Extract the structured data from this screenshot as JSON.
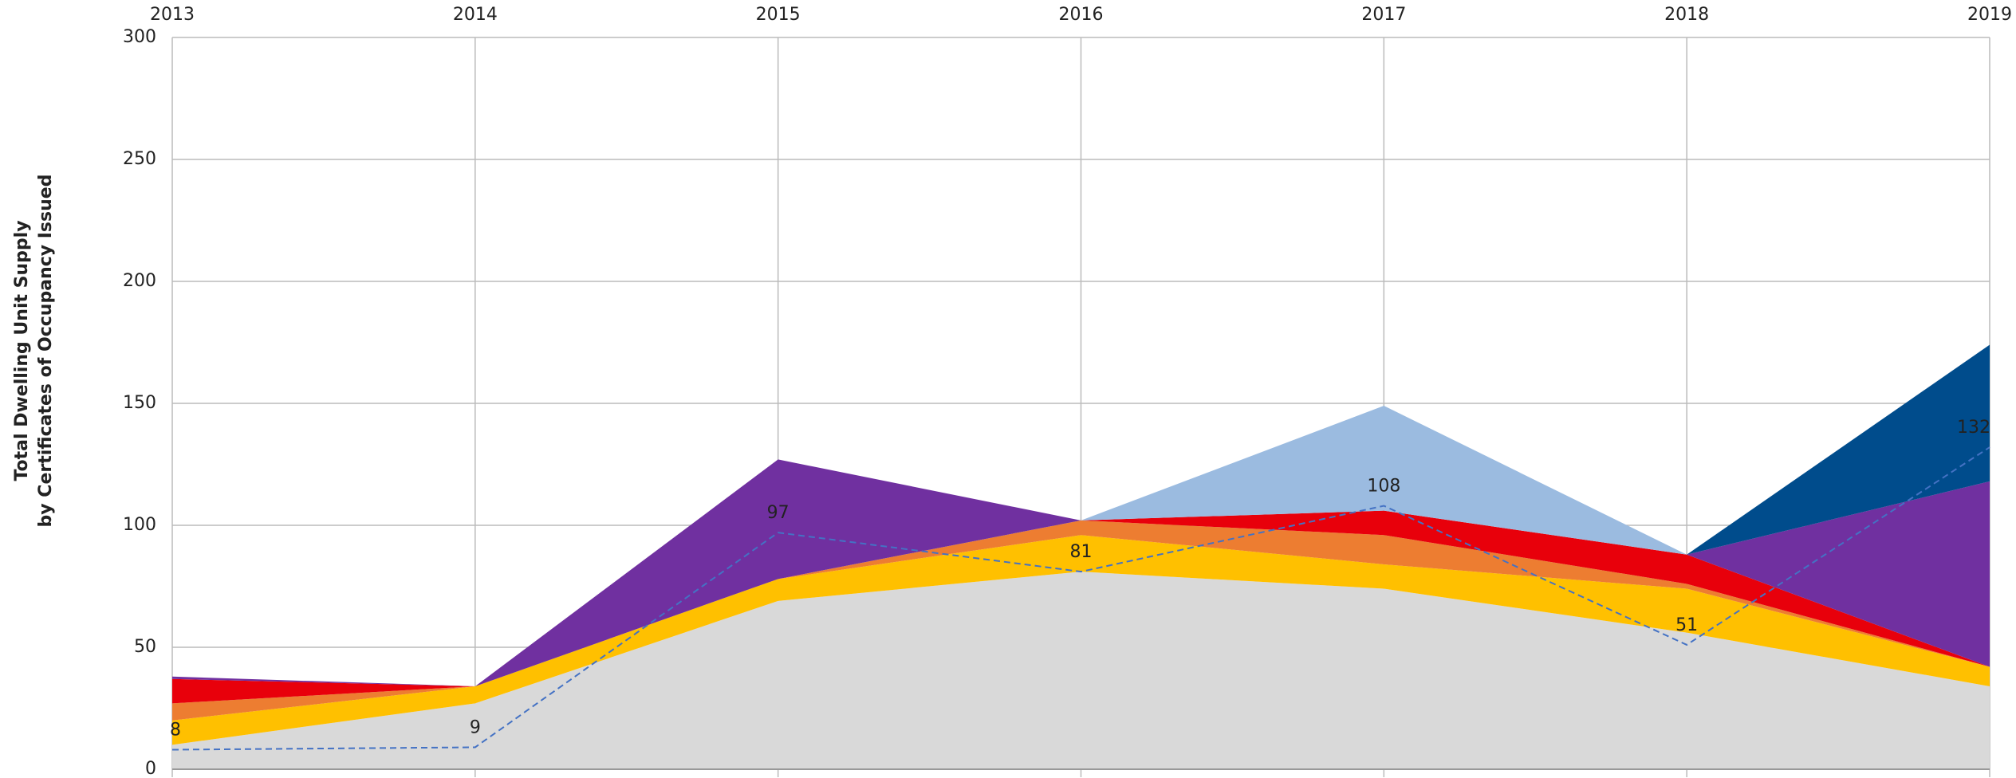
{
  "chart_data": {
    "type": "stacked_area",
    "ylabel": [
      "Total Dwelling Unit Supply",
      "by Certificates of Occupancy Issued"
    ],
    "categories": [
      "2013",
      "2014",
      "2015",
      "2016",
      "2017",
      "2018",
      "2019"
    ],
    "series": [
      {
        "color": "#d9d9d9",
        "values": [
          10,
          27,
          69,
          81,
          74,
          56,
          34
        ]
      },
      {
        "color": "#ffc000",
        "values": [
          10,
          7,
          9,
          15,
          10,
          18,
          8
        ]
      },
      {
        "color": "#ed7d31",
        "values": [
          7,
          0,
          0,
          6,
          12,
          2,
          0
        ]
      },
      {
        "color": "#e8000b",
        "values": [
          10,
          0,
          0,
          0,
          10,
          12,
          0
        ]
      },
      {
        "color": "#7030a0",
        "values": [
          1,
          0,
          49,
          0,
          0,
          0,
          76
        ]
      },
      {
        "color": "#9bbbe0",
        "values": [
          0,
          0,
          0,
          0,
          43,
          0,
          0
        ]
      },
      {
        "color": "#004c8c",
        "values": [
          0,
          0,
          0,
          0,
          0,
          0,
          56
        ]
      }
    ],
    "line": {
      "color": "#4472c4",
      "dashed": true,
      "values": [
        8,
        9,
        97,
        81,
        108,
        51,
        132
      ]
    },
    "ylim": [
      0,
      300
    ],
    "yticks": [
      0,
      50,
      100,
      150,
      200,
      250,
      300
    ],
    "grid": true
  }
}
